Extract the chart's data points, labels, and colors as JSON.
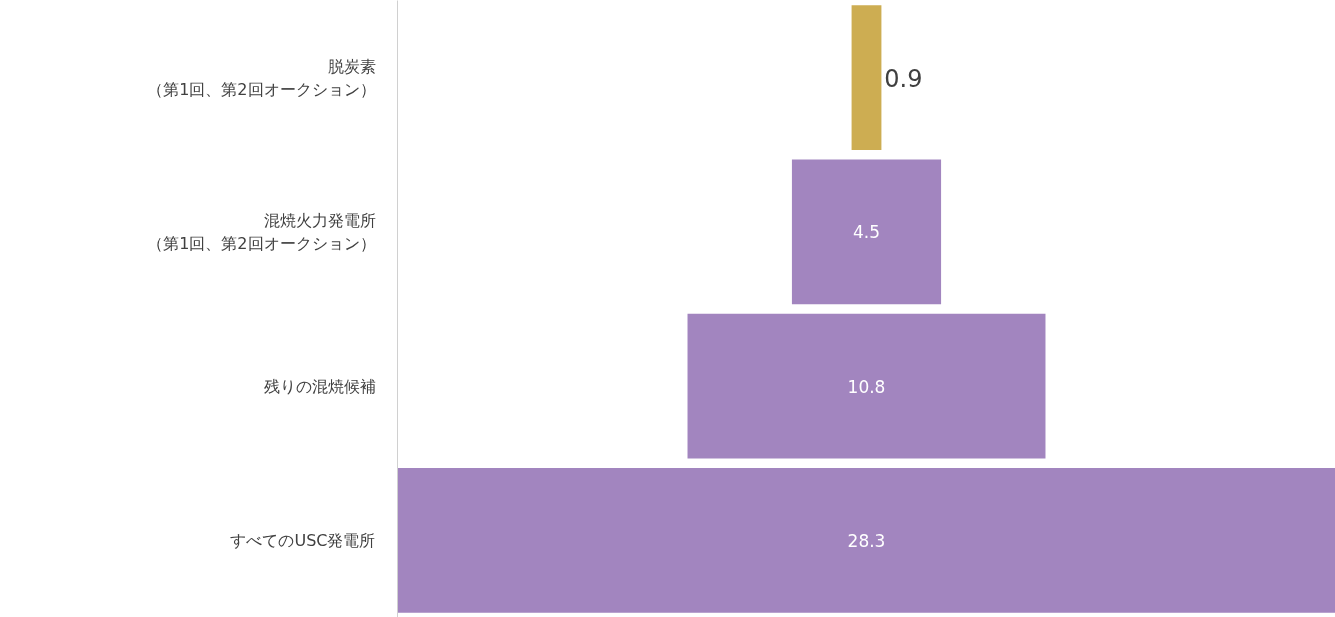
{
  "chart_data": {
    "type": "other",
    "categories": [
      "脱炭素（第1回、第2回オークション）",
      "混焼火力発電所（第1回、第2回オークション）",
      "残りの混焼候補",
      "すべてのUSC発電所"
    ],
    "values": [
      0.9,
      4.5,
      10.8,
      28.3
    ],
    "colors": [
      "#cdad52",
      "#a285bf",
      "#a285bf",
      "#a285bf"
    ],
    "data_labels": true
  }
}
